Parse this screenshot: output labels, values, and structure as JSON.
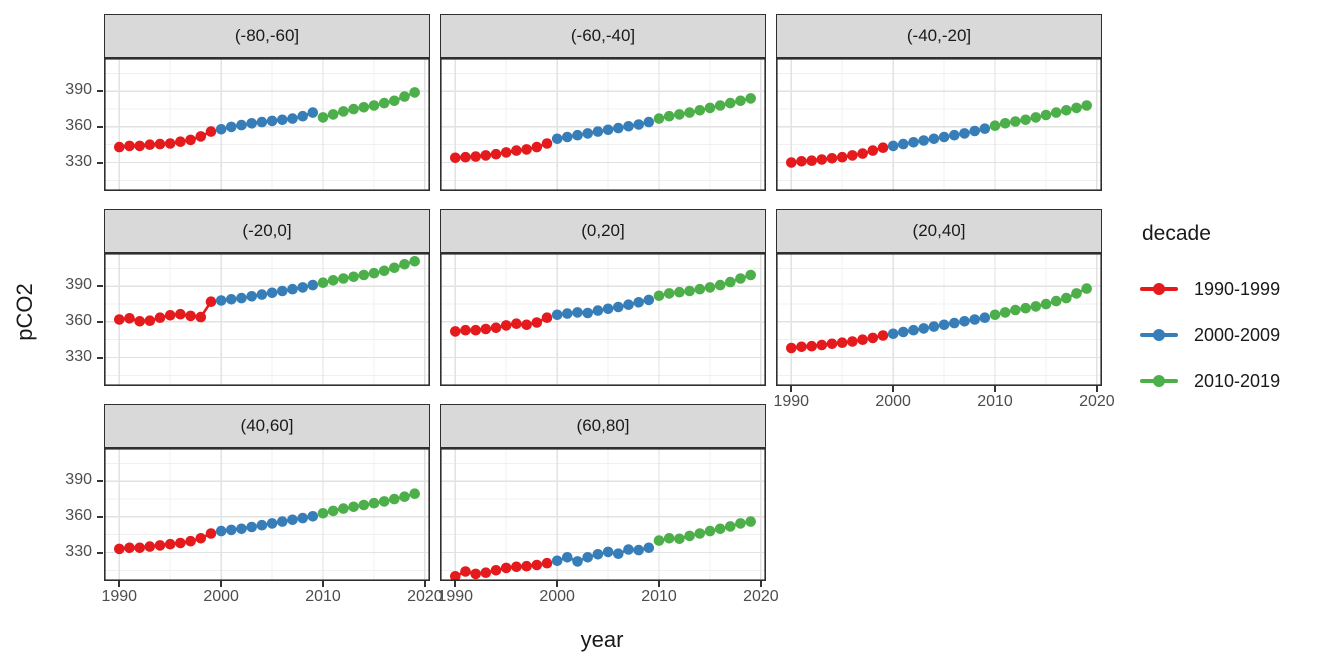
{
  "ui": {
    "x_axis_title": "year",
    "y_axis_title": "pCO2",
    "legend_title": "decade"
  },
  "theme": {
    "strip_fill": "#d9d9d9",
    "strip_border": "#2f2f2f",
    "panel_border": "#2f2f2f",
    "panel_bg": "#ffffff",
    "grid_major": "#e2e2e2",
    "grid_minor": "#f0f0f0",
    "tick_color": "#333333",
    "tick_label_color": "#4d4d4d",
    "text_color": "#1a1a1a"
  },
  "chart_data": {
    "type": "scatter",
    "title": "",
    "xlabel": "year",
    "ylabel": "pCO2",
    "facet_layout": "3 columns, 8 facets (latitude bands)",
    "grid": "major+minor",
    "xlim": [
      1988.5,
      2020.5
    ],
    "ylim": [
      306,
      418
    ],
    "x_ticks": [
      1990,
      2000,
      2010,
      2020
    ],
    "y_ticks": [
      330,
      360,
      390
    ],
    "x_minor": [
      1995,
      2005,
      2015
    ],
    "y_minor": [
      315,
      345,
      375,
      405
    ],
    "x": [
      1990,
      1991,
      1992,
      1993,
      1994,
      1995,
      1996,
      1997,
      1998,
      1999,
      2000,
      2001,
      2002,
      2003,
      2004,
      2005,
      2006,
      2007,
      2008,
      2009,
      2010,
      2011,
      2012,
      2013,
      2014,
      2015,
      2016,
      2017,
      2018,
      2019
    ],
    "legend": {
      "title": "decade",
      "position": "right",
      "entries": [
        {
          "label": "1990-1999",
          "color": "#E41A1C",
          "years": [
            1990,
            1999
          ]
        },
        {
          "label": "2000-2009",
          "color": "#377EB8",
          "years": [
            2000,
            2009
          ]
        },
        {
          "label": "2010-2019",
          "color": "#4DAF4A",
          "years": [
            2010,
            2019
          ]
        }
      ]
    },
    "facets": [
      {
        "label": "(-80,-60]",
        "values": [
          343,
          344,
          344,
          345,
          345.5,
          346,
          347.5,
          349,
          352,
          356,
          358,
          360,
          361.5,
          363,
          364,
          365,
          366,
          367,
          369,
          372,
          368,
          370.5,
          373,
          375,
          376.5,
          378,
          380,
          382,
          385.5,
          389
        ]
      },
      {
        "label": "(-60,-40]",
        "values": [
          334,
          334.5,
          335,
          336,
          337,
          338.5,
          340,
          341,
          343,
          346,
          350,
          351.5,
          353,
          354.5,
          356,
          357.5,
          359,
          360.5,
          362,
          364,
          367,
          369,
          370.5,
          372,
          374,
          376,
          378,
          380,
          382,
          384
        ]
      },
      {
        "label": "(-40,-20]",
        "values": [
          330,
          331,
          331.5,
          332.5,
          333.5,
          334.5,
          336,
          337.5,
          340,
          342.5,
          344,
          345.5,
          347,
          348.5,
          350,
          351.5,
          353,
          354.5,
          356.5,
          358.5,
          361,
          363,
          364.5,
          366,
          368,
          370,
          372,
          374,
          376,
          378
        ]
      },
      {
        "label": "(-20,0]",
        "values": [
          362,
          363,
          360.5,
          361,
          363.5,
          365.5,
          366.5,
          365,
          364,
          377,
          378,
          379,
          380,
          381.5,
          383,
          384.5,
          386,
          387.5,
          389,
          391,
          393,
          395,
          396.5,
          398,
          399.5,
          401,
          403,
          405.5,
          408.5,
          411
        ]
      },
      {
        "label": "(0,20]",
        "values": [
          352,
          353,
          353,
          354,
          355,
          357,
          358.5,
          357.5,
          359.5,
          363.5,
          366,
          367,
          368,
          367.5,
          369.5,
          371,
          372.5,
          374.5,
          376.5,
          378.5,
          382,
          384,
          385,
          386,
          387.5,
          389,
          391,
          393.5,
          396.5,
          399.5
        ]
      },
      {
        "label": "(20,40]",
        "values": [
          338,
          339,
          339.5,
          340.5,
          341.5,
          342.5,
          343.5,
          345,
          346.5,
          348.5,
          350,
          351.5,
          353,
          354.5,
          356,
          357.5,
          359,
          360.5,
          362,
          363.5,
          366,
          368,
          370,
          371.5,
          373,
          375,
          377.5,
          380,
          384,
          388
        ]
      },
      {
        "label": "(40,60]",
        "values": [
          333,
          334,
          334,
          335,
          336,
          337,
          338,
          339.5,
          342,
          346,
          348,
          349,
          350,
          351.5,
          353,
          354.5,
          356,
          357.5,
          359,
          360.5,
          363,
          365,
          367,
          368.5,
          370,
          371.5,
          373,
          375,
          377,
          379.5
        ]
      },
      {
        "label": "(60,80]",
        "values": [
          310,
          314,
          312,
          313,
          315,
          317,
          318,
          318.5,
          319.5,
          321,
          323,
          326,
          322.5,
          326,
          328.5,
          330.5,
          329,
          332.5,
          332,
          334,
          340,
          342,
          341.5,
          344,
          346,
          348,
          350,
          352,
          354.5,
          356
        ]
      }
    ]
  }
}
